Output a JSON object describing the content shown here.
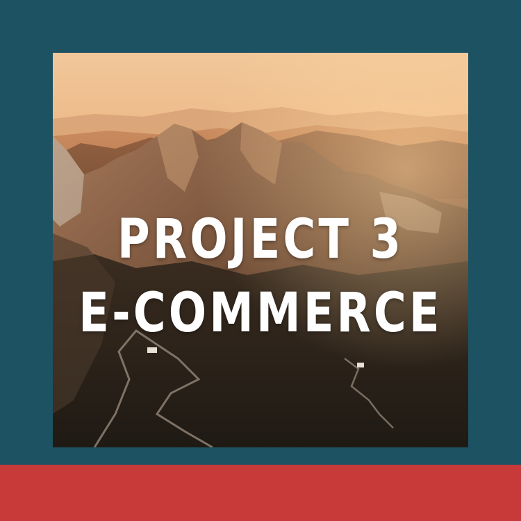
{
  "colors": {
    "frame_background": "#1d5262",
    "bottom_band": "#c8393a",
    "title_text": "#ffffff"
  },
  "title": {
    "line1": "PROJECT 3",
    "line2": "E-COMMERCE"
  },
  "photo": {
    "subject": "mountain-range-sunset-photo"
  }
}
